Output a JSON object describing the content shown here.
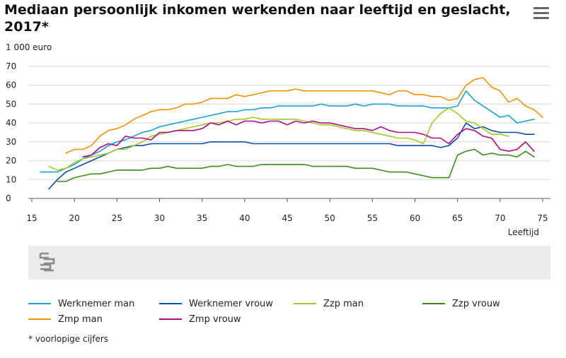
{
  "header": {
    "title": "Mediaan persoonlijk inkomen werkenden naar leeftijd en geslacht, 2017*",
    "menu_icon": "hamburger-menu-icon"
  },
  "footnote": "* voorlopige cijfers",
  "logo_icon": "cbs-logo-icon",
  "chart_data": {
    "type": "line",
    "title": "Mediaan persoonlijk inkomen werkenden naar leeftijd en geslacht, 2017*",
    "ylabel": "1 000 euro",
    "xlabel": "Leeftijd",
    "xlim": [
      15,
      75
    ],
    "ylim": [
      0,
      70
    ],
    "xticks": [
      15,
      20,
      25,
      30,
      35,
      40,
      45,
      50,
      55,
      60,
      65,
      70,
      75
    ],
    "yticks": [
      0,
      10,
      20,
      30,
      40,
      50,
      60,
      70
    ],
    "grid": true,
    "legend_position": "bottom",
    "series": [
      {
        "name": "Werknemer man",
        "color": "#1aa1d6",
        "start": 16,
        "values": [
          14,
          14,
          14,
          16,
          18,
          21,
          23,
          25,
          28,
          30,
          31,
          33,
          35,
          36,
          38,
          39,
          40,
          41,
          42,
          43,
          44,
          45,
          46,
          46,
          47,
          47,
          48,
          48,
          49,
          49,
          49,
          49,
          49,
          50,
          49,
          49,
          49,
          50,
          49,
          50,
          50,
          50,
          49,
          49,
          49,
          49,
          48,
          48,
          48,
          49,
          57,
          52,
          49,
          46,
          43,
          44,
          40,
          41,
          42
        ]
      },
      {
        "name": "Werknemer vrouw",
        "color": "#0b4fa8",
        "start": 17,
        "values": [
          5,
          10,
          14,
          16,
          18,
          20,
          22,
          24,
          26,
          27,
          28,
          28,
          29,
          29,
          29,
          29,
          29,
          29,
          29,
          30,
          30,
          30,
          30,
          30,
          29,
          29,
          29,
          29,
          29,
          29,
          29,
          29,
          29,
          29,
          29,
          29,
          29,
          29,
          29,
          29,
          29,
          28,
          28,
          28,
          28,
          28,
          27,
          28,
          32,
          40,
          37,
          38,
          36,
          35,
          35,
          35,
          34,
          34
        ]
      },
      {
        "name": "Zzp man",
        "color": "#a2c928",
        "start": 17,
        "values": [
          17,
          15,
          16,
          19,
          21,
          22,
          23,
          24,
          26,
          26,
          28,
          30,
          33,
          34,
          35,
          36,
          37,
          38,
          39,
          40,
          40,
          41,
          42,
          42,
          43,
          42,
          42,
          42,
          42,
          42,
          41,
          40,
          39,
          39,
          38,
          37,
          36,
          36,
          35,
          34,
          33,
          32,
          32,
          31,
          29,
          40,
          45,
          48,
          45,
          41,
          40,
          37,
          34,
          34,
          33
        ]
      },
      {
        "name": "Zzp vrouw",
        "color": "#3f8a1c",
        "start": 18,
        "values": [
          9,
          9,
          11,
          12,
          13,
          13,
          14,
          15,
          15,
          15,
          15,
          16,
          16,
          17,
          16,
          16,
          16,
          16,
          17,
          17,
          18,
          17,
          17,
          17,
          18,
          18,
          18,
          18,
          18,
          18,
          17,
          17,
          17,
          17,
          17,
          16,
          16,
          16,
          15,
          14,
          14,
          14,
          13,
          12,
          11,
          11,
          11,
          23,
          25,
          26,
          23,
          24,
          23,
          23,
          22,
          25,
          22
        ]
      },
      {
        "name": "Zmp man",
        "color": "#f39200",
        "start": 19,
        "values": [
          24,
          26,
          26,
          28,
          33,
          36,
          37,
          39,
          42,
          44,
          46,
          47,
          47,
          48,
          50,
          50,
          51,
          53,
          53,
          53,
          55,
          54,
          55,
          56,
          57,
          57,
          57,
          58,
          57,
          57,
          57,
          57,
          57,
          57,
          57,
          57,
          57,
          56,
          55,
          57,
          57,
          55,
          55,
          54,
          54,
          52,
          53,
          60,
          63,
          64,
          59,
          57,
          51,
          53,
          49,
          47,
          43
        ]
      },
      {
        "name": "Zmp vrouw",
        "color": "#af0e80",
        "start": 21,
        "values": [
          22,
          23,
          27,
          29,
          28,
          33,
          32,
          32,
          31,
          35,
          35,
          36,
          36,
          36,
          37,
          40,
          39,
          41,
          39,
          41,
          41,
          40,
          41,
          41,
          39,
          41,
          40,
          41,
          40,
          40,
          39,
          38,
          37,
          37,
          36,
          38,
          36,
          35,
          35,
          35,
          34,
          32,
          32,
          29,
          34,
          37,
          36,
          33,
          32,
          26,
          25,
          26,
          30,
          25
        ]
      }
    ]
  }
}
